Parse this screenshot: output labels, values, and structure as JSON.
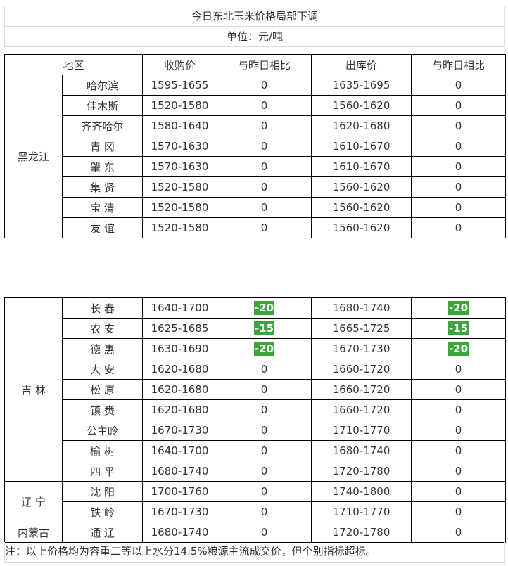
{
  "title": "今日东北玉米价格局部下调",
  "unit": "单位：元/吨",
  "headers": [
    "地区",
    "收购价",
    "与昨日相比",
    "出库价",
    "与昨日相比"
  ],
  "accent": "#3ca53c",
  "table1": [
    {
      "province": "黑龙江",
      "rows": [
        [
          "哈尔滨",
          "1595-1655",
          "0",
          "1635-1695",
          "0"
        ],
        [
          "佳木斯",
          "1520-1580",
          "0",
          "1560-1620",
          "0"
        ],
        [
          "齐齐哈尔",
          "1580-1640",
          "0",
          "1620-1680",
          "0"
        ],
        [
          "青 冈",
          "1570-1630",
          "0",
          "1610-1670",
          "0"
        ],
        [
          "肇 东",
          "1570-1630",
          "0",
          "1610-1670",
          "0"
        ],
        [
          "集 贤",
          "1520-1580",
          "0",
          "1560-1620",
          "0"
        ],
        [
          "宝 清",
          "1520-1580",
          "0",
          "1560-1620",
          "0"
        ],
        [
          "友 谊",
          "1520-1580",
          "0",
          "1560-1620",
          "0"
        ]
      ]
    }
  ],
  "table2": [
    {
      "province": "吉 林",
      "rows": [
        [
          "长 春",
          "1640-1700",
          "-20",
          "1680-1740",
          "-20"
        ],
        [
          "农 安",
          "1625-1685",
          "-15",
          "1665-1725",
          "-15"
        ],
        [
          "德 惠",
          "1630-1690",
          "-20",
          "1670-1730",
          "-20"
        ],
        [
          "大 安",
          "1620-1680",
          "0",
          "1660-1720",
          "0"
        ],
        [
          "松 原",
          "1620-1680",
          "0",
          "1660-1720",
          "0"
        ],
        [
          "镇 赉",
          "1620-1680",
          "0",
          "1660-1720",
          "0"
        ],
        [
          "公主岭",
          "1670-1730",
          "0",
          "1710-1770",
          "0"
        ],
        [
          "榆 树",
          "1640-1700",
          "0",
          "1680-1740",
          "0"
        ],
        [
          "四 平",
          "1680-1740",
          "0",
          "1720-1780",
          "0"
        ]
      ]
    },
    {
      "province": "辽 宁",
      "rows": [
        [
          "沈 阳",
          "1700-1760",
          "0",
          "1740-1800",
          "0"
        ],
        [
          "铁 岭",
          "1670-1730",
          "0",
          "1710-1770",
          "0"
        ]
      ]
    },
    {
      "province": "内蒙古",
      "rows": [
        [
          "通 辽",
          "1680-1740",
          "0",
          "1720-1780",
          "0"
        ]
      ]
    }
  ],
  "note": "注：以上价格均为容重二等以上水分14.5%粮源主流成交价，但个别指标超标。"
}
